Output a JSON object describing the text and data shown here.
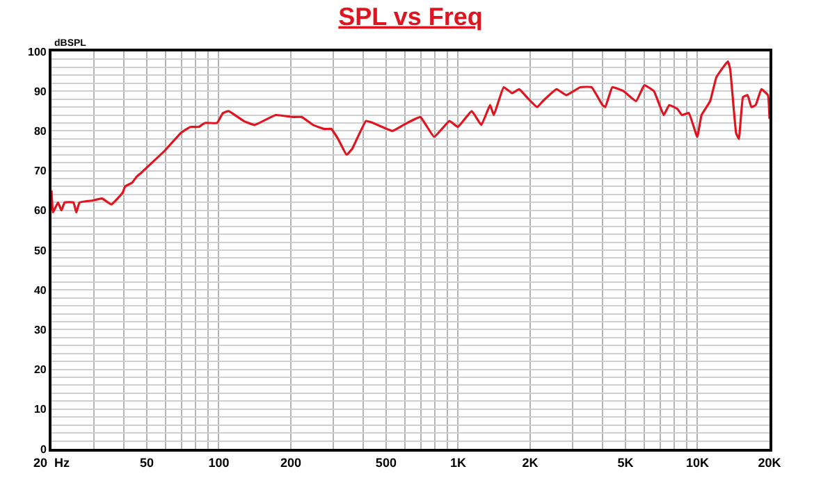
{
  "chart_data": {
    "type": "line",
    "title": "SPL vs Freq",
    "ylabel": "dBSPL",
    "log": "x",
    "grid": true,
    "line_style": "solid",
    "x": [
      20,
      20.3,
      21.3,
      22,
      22.7,
      24.7,
      25.4,
      26.2,
      29.8,
      32.5,
      35.6,
      39.7,
      40.6,
      43.5,
      45.4,
      47.5,
      59.4,
      69.5,
      76,
      82.4,
      87.5,
      98.4,
      104,
      110,
      127,
      141,
      173,
      203,
      222,
      248,
      276,
      295,
      315,
      342,
      361,
      412,
      441,
      531,
      591,
      695,
      794,
      920,
      998,
      1140,
      1250,
      1360,
      1410,
      1550,
      1680,
      1800,
      1970,
      2140,
      2260,
      2580,
      2830,
      3240,
      3610,
      4010,
      4120,
      4410,
      4910,
      5540,
      6000,
      6580,
      7230,
      7620,
      8260,
      8610,
      9200,
      9980,
      10400,
      11300,
      12000,
      13400,
      13700,
      14500,
      14900,
      15500,
      16200,
      16800,
      17500,
      18500,
      19700,
      20000
    ],
    "series": [
      {
        "color": "#e0141e",
        "values": [
          65,
          59.5,
          62,
          60,
          62,
          62,
          59.5,
          62,
          62.5,
          63,
          61.5,
          64.5,
          66,
          67,
          68.5,
          69.5,
          75,
          79.5,
          81,
          81,
          82,
          82,
          84.5,
          85,
          82.5,
          81.5,
          84,
          83.5,
          83.5,
          81.5,
          80.5,
          80.5,
          78,
          74,
          75.5,
          82.5,
          82,
          80,
          81.5,
          83.5,
          78.5,
          82.5,
          81,
          85,
          81.5,
          86.5,
          84,
          91,
          89.5,
          90.5,
          88,
          86,
          87.5,
          90.5,
          89,
          91,
          91,
          86.5,
          86,
          91,
          90,
          87.5,
          91.5,
          90,
          84,
          86.5,
          85.5,
          84,
          84.5,
          78.5,
          84,
          87.5,
          93.5,
          97.5,
          95.5,
          79.5,
          78,
          88.5,
          89,
          86,
          86.5,
          90.5,
          89,
          83
        ]
      }
    ],
    "xlim": [
      20,
      20000
    ],
    "xticks": [
      {
        "value": 20,
        "label": "20  Hz"
      },
      {
        "value": 30,
        "label": null
      },
      {
        "value": 40,
        "label": null
      },
      50,
      {
        "value": 60,
        "label": null
      },
      {
        "value": 70,
        "label": null
      },
      {
        "value": 80,
        "label": null
      },
      {
        "value": 90,
        "label": null
      },
      100,
      200,
      {
        "value": 300,
        "label": null
      },
      {
        "value": 400,
        "label": null
      },
      500,
      {
        "value": 600,
        "label": null
      },
      {
        "value": 700,
        "label": null
      },
      {
        "value": 800,
        "label": null
      },
      {
        "value": 900,
        "label": null
      },
      {
        "value": 1000,
        "label": "1K"
      },
      {
        "value": 2000,
        "label": "2K"
      },
      {
        "value": 3000,
        "label": null
      },
      {
        "value": 4000,
        "label": null
      },
      {
        "value": 5000,
        "label": "5K"
      },
      {
        "value": 6000,
        "label": null
      },
      {
        "value": 7000,
        "label": null
      },
      {
        "value": 8000,
        "label": null
      },
      {
        "value": 9000,
        "label": null
      },
      {
        "value": 10000,
        "label": "10K"
      },
      {
        "value": 20000,
        "label": "20K"
      }
    ],
    "ylim": [
      0,
      100
    ],
    "yticks": [
      0,
      {
        "value": 2,
        "label": null
      },
      {
        "value": 4,
        "label": null
      },
      {
        "value": 6,
        "label": null
      },
      {
        "value": 8,
        "label": null
      },
      10,
      {
        "value": 12,
        "label": null
      },
      {
        "value": 14,
        "label": null
      },
      {
        "value": 16,
        "label": null
      },
      {
        "value": 18,
        "label": null
      },
      20,
      {
        "value": 22,
        "label": null
      },
      {
        "value": 24,
        "label": null
      },
      {
        "value": 26,
        "label": null
      },
      {
        "value": 28,
        "label": null
      },
      30,
      {
        "value": 32,
        "label": null
      },
      {
        "value": 34,
        "label": null
      },
      {
        "value": 36,
        "label": null
      },
      {
        "value": 38,
        "label": null
      },
      40,
      {
        "value": 42,
        "label": null
      },
      {
        "value": 44,
        "label": null
      },
      {
        "value": 46,
        "label": null
      },
      {
        "value": 48,
        "label": null
      },
      50,
      {
        "value": 52,
        "label": null
      },
      {
        "value": 54,
        "label": null
      },
      {
        "value": 56,
        "label": null
      },
      {
        "value": 58,
        "label": null
      },
      60,
      {
        "value": 62,
        "label": null
      },
      {
        "value": 64,
        "label": null
      },
      {
        "value": 66,
        "label": null
      },
      {
        "value": 68,
        "label": null
      },
      70,
      {
        "value": 72,
        "label": null
      },
      {
        "value": 74,
        "label": null
      },
      {
        "value": 76,
        "label": null
      },
      {
        "value": 78,
        "label": null
      },
      80,
      {
        "value": 82,
        "label": null
      },
      {
        "value": 84,
        "label": null
      },
      {
        "value": 86,
        "label": null
      },
      {
        "value": 88,
        "label": null
      },
      90,
      {
        "value": 92,
        "label": null
      },
      {
        "value": 94,
        "label": null
      },
      {
        "value": 96,
        "label": null
      },
      {
        "value": 98,
        "label": null
      },
      100
    ]
  }
}
